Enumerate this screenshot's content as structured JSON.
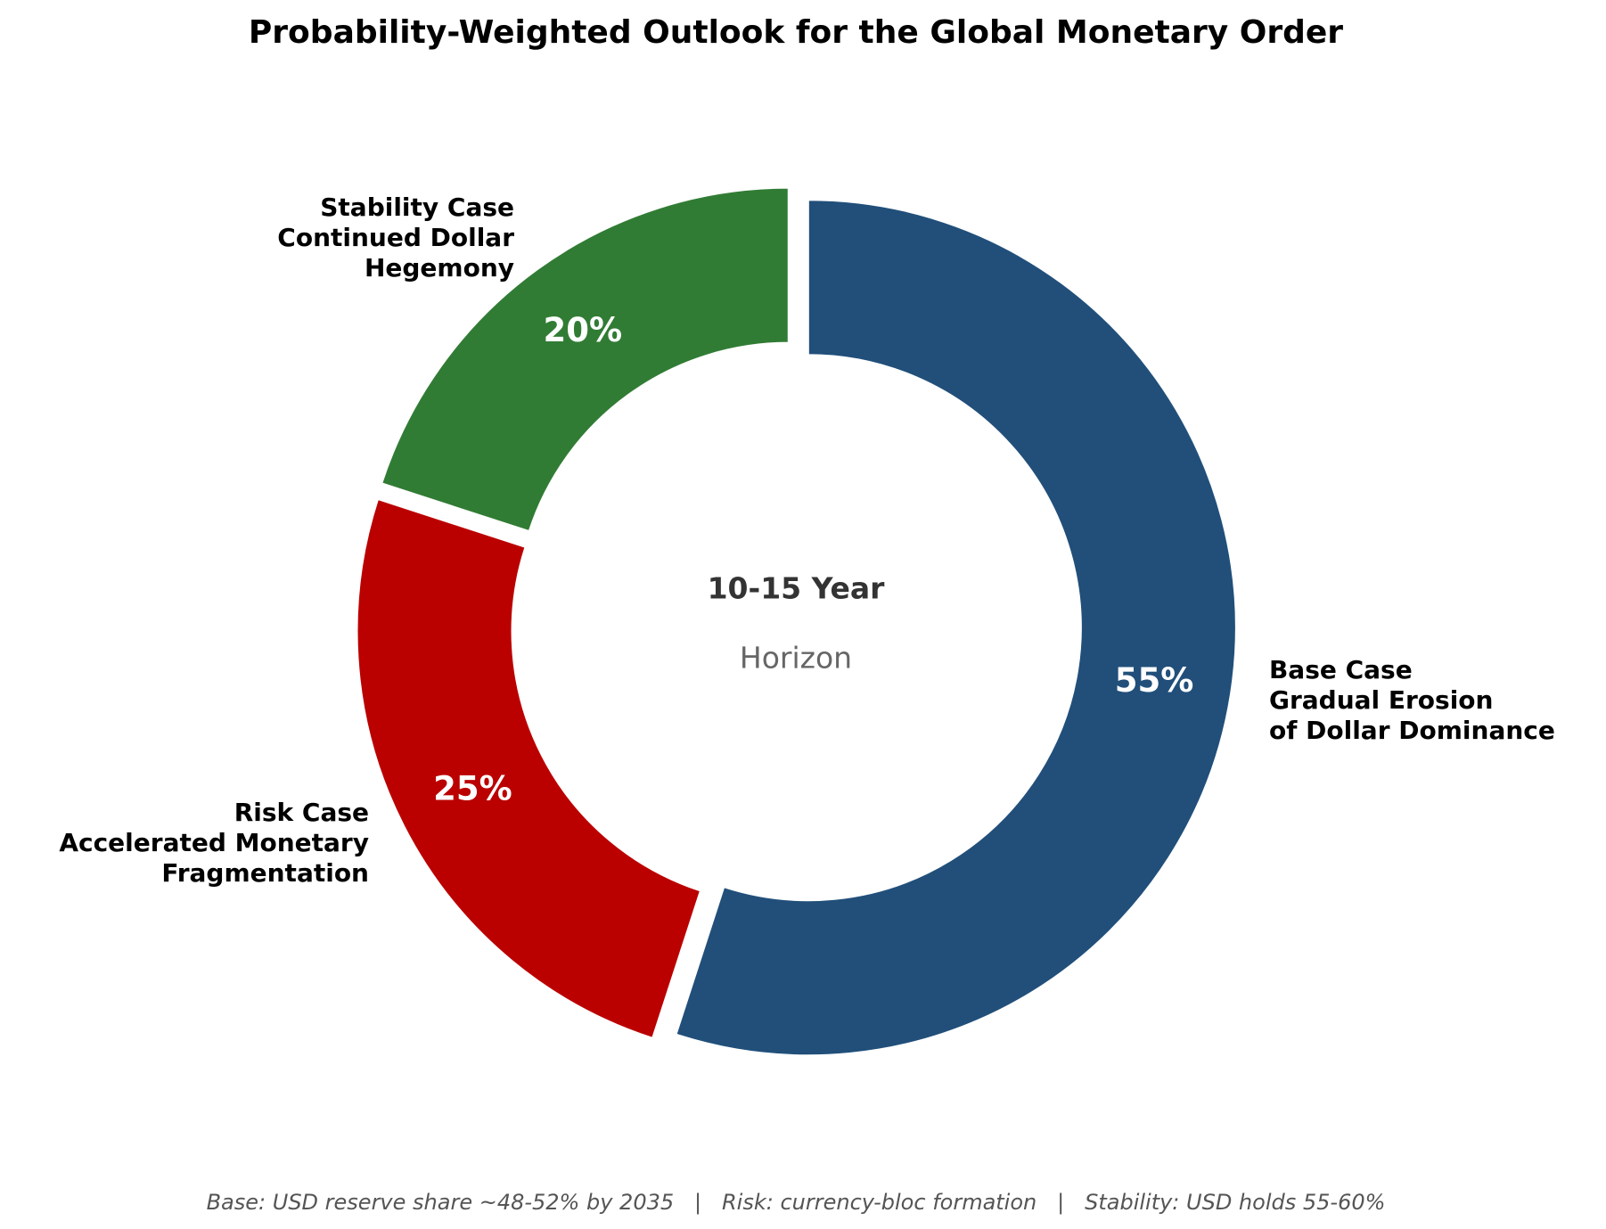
{
  "chart_data": {
    "type": "donut",
    "title": "Probability-Weighted Outlook for the Global Monetary Order",
    "categories": [
      "Base Case\nGradual Erosion\nof Dollar Dominance",
      "Risk Case\nAccelerated Monetary\nFragmentation",
      "Stability Case\nContinued Dollar\nHegemony"
    ],
    "values": [
      55,
      25,
      20
    ],
    "value_labels": [
      "55%",
      "25%",
      "20%"
    ],
    "colors": [
      "#214f7a",
      "#bb0000",
      "#317c34"
    ],
    "center_text": "10-15 Year",
    "center_subtext": "Horizon",
    "footnote": "Base: USD reserve share ~48-52% by 2035   |   Risk: currency-bloc formation   |   Stability: USD holds 55-60%"
  }
}
